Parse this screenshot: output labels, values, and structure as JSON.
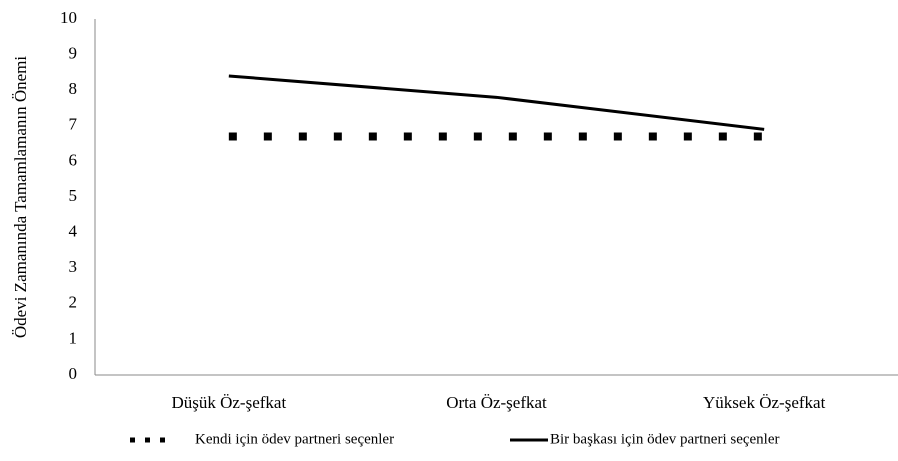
{
  "chart_data": {
    "type": "line",
    "ylabel": "Ödevi Zamanında Tamamlamanın Önemi",
    "categories": [
      "Düşük Öz-şefkat",
      "Orta Öz-şefkat",
      "Yüksek Öz-şefkat"
    ],
    "series": [
      {
        "name": "Kendi için ödev partneri seçenler",
        "color": "#000000",
        "line_style": "dotted",
        "values": [
          6.7,
          6.7,
          6.7
        ]
      },
      {
        "name": "Bir başkası için ödev partneri seçenler",
        "color": "#000000",
        "line_style": "solid",
        "values": [
          8.4,
          7.8,
          6.9
        ]
      }
    ],
    "ylim": [
      0,
      10
    ],
    "yticks": [
      0,
      1,
      2,
      3,
      4,
      5,
      6,
      7,
      8,
      9,
      10
    ],
    "grid": false
  }
}
